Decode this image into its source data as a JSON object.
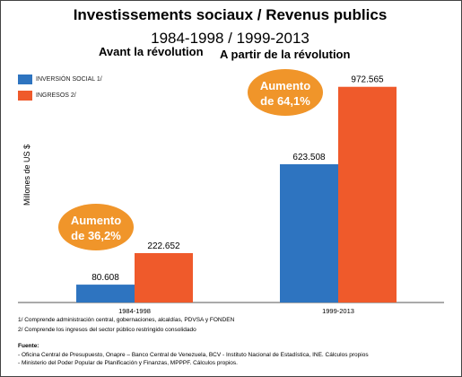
{
  "title": "Investissements sociaux / Revenus publics",
  "subtitle": "1984-1998 / 1999-2013",
  "period_left_label": "Avant la révolution",
  "period_right_label": "A partir de la révolution",
  "chart_data": {
    "type": "bar",
    "categories": [
      "1984-1998",
      "1999-2013"
    ],
    "series": [
      {
        "name": "INVERSIÓN SOCIAL 1/",
        "values": [
          80.608,
          623.508
        ],
        "labels": [
          "80.608",
          "623.508"
        ],
        "color": "#2e74c0"
      },
      {
        "name": "INGRESOS 2/",
        "values": [
          222.652,
          972.565
        ],
        "labels": [
          "222.652",
          "972.565"
        ],
        "color": "#ef5a2b"
      }
    ],
    "ylabel": "Millones de US $",
    "ylim": [
      0,
      1020
    ],
    "grid": false,
    "legend": "top-left",
    "annotations": [
      {
        "text_line1": "Aumento",
        "text_line2": "de 36,2%",
        "color": "#f0952a",
        "category": "1984-1998"
      },
      {
        "text_line1": "Aumento",
        "text_line2": "de 64,1%",
        "color": "#f0952a",
        "category": "1999-2013"
      }
    ]
  },
  "notes": {
    "note1": "1/ Comprende administración central, gobernaciones, alcaldías, PDVSA y FONDEN",
    "note2": "2/ Comprende los ingresos del sector público restringido consolidado",
    "source_label": "Fuente:",
    "source1": "- Oficina Central de Presupuesto, Onapre – Banco Central de Venezuela, BCV - Instituto Nacional de Estadística, INE. Cálculos propios",
    "source2": "- Ministerio del Poder Popular de Planificación y Finanzas, MPPPF. Cálculos propios."
  }
}
